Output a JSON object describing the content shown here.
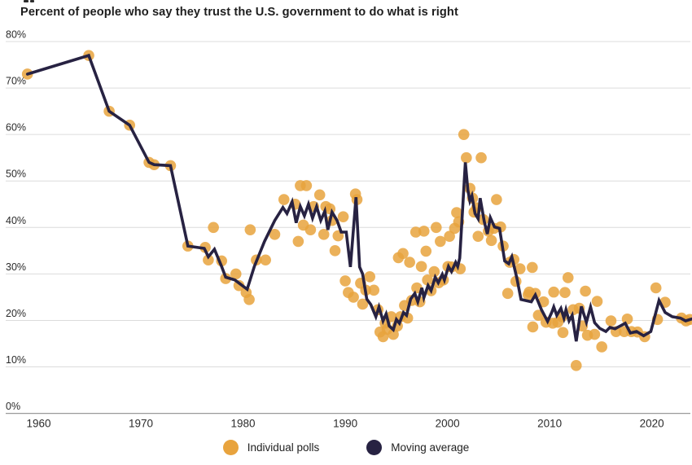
{
  "title": "Percent of people who say they trust the U.S. government to do what is right",
  "legend": [
    {
      "label": "Individual polls",
      "color": "#E8A33D"
    },
    {
      "label": "Moving average",
      "color": "#272242"
    }
  ],
  "colors": {
    "poll_dot": "#E8A33D",
    "moving_average_line": "#272242",
    "gridline": "#DCDCDC",
    "zero_axis": "#9A9A9A",
    "tick_text": "#2b2b2b"
  },
  "chart_data": {
    "type": "scatter",
    "title": "Percent of people who say they trust the U.S. government to do what is right",
    "xlabel": "",
    "ylabel": "",
    "grid": true,
    "legend_position": "bottom",
    "x_axis": {
      "range": [
        1957.5,
        2024.3
      ],
      "ticks": [
        {
          "value": 1960,
          "label": "1960"
        },
        {
          "value": 1970,
          "label": "1970"
        },
        {
          "value": 1980,
          "label": "1980"
        },
        {
          "value": 1990,
          "label": "1990"
        },
        {
          "value": 2000,
          "label": "2000"
        },
        {
          "value": 2010,
          "label": "2010"
        },
        {
          "value": 2020,
          "label": "2020"
        }
      ]
    },
    "y_axis": {
      "range": [
        0,
        80
      ],
      "unit": "%",
      "ticks": [
        {
          "value": 0,
          "label": "0%"
        },
        {
          "value": 10,
          "label": "10%"
        },
        {
          "value": 20,
          "label": "20%"
        },
        {
          "value": 30,
          "label": "30%"
        },
        {
          "value": 40,
          "label": "40%"
        },
        {
          "value": 50,
          "label": "50%"
        },
        {
          "value": 60,
          "label": "60%"
        },
        {
          "value": 70,
          "label": "70%"
        },
        {
          "value": 80,
          "label": "80%"
        }
      ]
    },
    "series": [
      {
        "name": "Individual polls",
        "type": "scatter",
        "color": "#E8A33D",
        "points": [
          [
            1958.9,
            73
          ],
          [
            1964.9,
            77
          ],
          [
            1966.9,
            65
          ],
          [
            1968.9,
            62
          ],
          [
            1970.8,
            54
          ],
          [
            1971.3,
            53.5
          ],
          [
            1972.9,
            53.3
          ],
          [
            1974.6,
            36
          ],
          [
            1976.3,
            35.7
          ],
          [
            1976.6,
            33
          ],
          [
            1977.1,
            40
          ],
          [
            1977.9,
            32.8
          ],
          [
            1978.3,
            29
          ],
          [
            1979.3,
            30
          ],
          [
            1979.6,
            27.5
          ],
          [
            1980.3,
            26
          ],
          [
            1980.6,
            24.5
          ],
          [
            1980.7,
            39.5
          ],
          [
            1981.3,
            33
          ],
          [
            1982.2,
            33
          ],
          [
            1983.1,
            38.5
          ],
          [
            1984,
            46
          ],
          [
            1985.1,
            45
          ],
          [
            1985.4,
            37
          ],
          [
            1985.6,
            49
          ],
          [
            1985.9,
            40.5
          ],
          [
            1986.2,
            49
          ],
          [
            1986.6,
            39.5
          ],
          [
            1986.9,
            44.5
          ],
          [
            1987.5,
            47
          ],
          [
            1987.9,
            38.5
          ],
          [
            1988.1,
            44.5
          ],
          [
            1988.5,
            44
          ],
          [
            1988.7,
            41.5
          ],
          [
            1989,
            35
          ],
          [
            1989.3,
            38.2
          ],
          [
            1989.8,
            42.3
          ],
          [
            1990,
            28.5
          ],
          [
            1990.3,
            26
          ],
          [
            1990.8,
            25
          ],
          [
            1991,
            47.2
          ],
          [
            1991.15,
            46
          ],
          [
            1991.5,
            28
          ],
          [
            1991.7,
            23.5
          ],
          [
            1992,
            26.5
          ],
          [
            1992.4,
            29.4
          ],
          [
            1992.8,
            26.5
          ],
          [
            1993.2,
            22.3
          ],
          [
            1993.4,
            17.5
          ],
          [
            1993.7,
            16.5
          ],
          [
            1993.9,
            19.4
          ],
          [
            1994.1,
            18.1
          ],
          [
            1994.5,
            20.8
          ],
          [
            1994.7,
            17
          ],
          [
            1995.1,
            18.8
          ],
          [
            1995.2,
            33.5
          ],
          [
            1995.4,
            20.8
          ],
          [
            1995.65,
            34.4
          ],
          [
            1995.8,
            23.2
          ],
          [
            1996.1,
            20.5
          ],
          [
            1996.3,
            32.5
          ],
          [
            1996.5,
            24.3
          ],
          [
            1996.9,
            39
          ],
          [
            1997,
            27
          ],
          [
            1997.3,
            24
          ],
          [
            1997.45,
            31.6
          ],
          [
            1997.7,
            39.2
          ],
          [
            1997.9,
            34.9
          ],
          [
            1998.05,
            28.7
          ],
          [
            1998.4,
            26.4
          ],
          [
            1998.7,
            30.5
          ],
          [
            1998.9,
            40
          ],
          [
            1999.15,
            28.1
          ],
          [
            1999.3,
            37
          ],
          [
            1999.6,
            28.7
          ],
          [
            2000.05,
            31.6
          ],
          [
            2000.2,
            38.1
          ],
          [
            2000.4,
            31.5
          ],
          [
            2000.7,
            39.8
          ],
          [
            2000.9,
            43.2
          ],
          [
            2001.1,
            41.2
          ],
          [
            2001.25,
            31.1
          ],
          [
            2001.6,
            60
          ],
          [
            2001.85,
            55
          ],
          [
            2002.2,
            48.4
          ],
          [
            2002.45,
            46.3
          ],
          [
            2002.6,
            43.3
          ],
          [
            2002.85,
            44.2
          ],
          [
            2003,
            38.1
          ],
          [
            2003.3,
            55
          ],
          [
            2003.5,
            41.7
          ],
          [
            2004,
            39.2
          ],
          [
            2004.3,
            37.2
          ],
          [
            2004.55,
            39.8
          ],
          [
            2004.8,
            46
          ],
          [
            2005.2,
            40.1
          ],
          [
            2005.45,
            36
          ],
          [
            2005.9,
            25.8
          ],
          [
            2006.1,
            32.5
          ],
          [
            2006.5,
            33.1
          ],
          [
            2006.7,
            28.4
          ],
          [
            2007.1,
            31.1
          ],
          [
            2007.9,
            25.5
          ],
          [
            2008,
            26.1
          ],
          [
            2008.3,
            31.4
          ],
          [
            2008.35,
            18.6
          ],
          [
            2008.6,
            25.8
          ],
          [
            2008.9,
            21.1
          ],
          [
            2009.4,
            24
          ],
          [
            2009.65,
            19.6
          ],
          [
            2010.3,
            19.4
          ],
          [
            2010.4,
            26.1
          ],
          [
            2010.8,
            19.6
          ],
          [
            2011.2,
            20.8
          ],
          [
            2011.3,
            17.4
          ],
          [
            2011.5,
            26
          ],
          [
            2011.8,
            29.2
          ],
          [
            2012.3,
            22.3
          ],
          [
            2012.6,
            10.3
          ],
          [
            2012.9,
            22.6
          ],
          [
            2013.2,
            18.8
          ],
          [
            2013.5,
            26.3
          ],
          [
            2013.7,
            16.8
          ],
          [
            2014.4,
            17
          ],
          [
            2014.65,
            24.1
          ],
          [
            2015.1,
            14.3
          ],
          [
            2016,
            19.9
          ],
          [
            2016.5,
            17.6
          ],
          [
            2017.3,
            17.6
          ],
          [
            2017.6,
            20.3
          ],
          [
            2018,
            17.6
          ],
          [
            2018.6,
            17.5
          ],
          [
            2019.3,
            16.5
          ],
          [
            2020.4,
            27
          ],
          [
            2020.55,
            20.2
          ],
          [
            2021.3,
            23.9
          ],
          [
            2022.9,
            20.5
          ],
          [
            2023.35,
            19.9
          ],
          [
            2023.7,
            20.2
          ]
        ]
      },
      {
        "name": "Moving average",
        "type": "line",
        "color": "#272242",
        "points": [
          [
            1958.9,
            73
          ],
          [
            1964.9,
            77
          ],
          [
            1966.9,
            65
          ],
          [
            1968.9,
            62
          ],
          [
            1970.8,
            54
          ],
          [
            1971.3,
            53.5
          ],
          [
            1972.9,
            53.3
          ],
          [
            1974.6,
            36
          ],
          [
            1976.2,
            35.5
          ],
          [
            1976.6,
            33.7
          ],
          [
            1977.2,
            35.3
          ],
          [
            1977.9,
            31.6
          ],
          [
            1978.3,
            29.3
          ],
          [
            1979.2,
            28.7
          ],
          [
            1980.4,
            26.7
          ],
          [
            1981.1,
            31.6
          ],
          [
            1982.1,
            37
          ],
          [
            1983.1,
            41.5
          ],
          [
            1983.9,
            44.3
          ],
          [
            1984.3,
            43
          ],
          [
            1984.8,
            45.5
          ],
          [
            1985.2,
            41
          ],
          [
            1985.6,
            44.5
          ],
          [
            1986,
            42.5
          ],
          [
            1986.4,
            45
          ],
          [
            1986.8,
            42
          ],
          [
            1987.2,
            44.5
          ],
          [
            1987.6,
            41.5
          ],
          [
            1988,
            43.5
          ],
          [
            1988.3,
            39.5
          ],
          [
            1988.7,
            43.3
          ],
          [
            1989.2,
            41.5
          ],
          [
            1989.6,
            39
          ],
          [
            1990.1,
            39
          ],
          [
            1990.5,
            31.5
          ],
          [
            1991.05,
            46.5
          ],
          [
            1991.4,
            31.5
          ],
          [
            1991.7,
            30
          ],
          [
            1992.1,
            24.6
          ],
          [
            1992.5,
            23.4
          ],
          [
            1993,
            20.8
          ],
          [
            1993.3,
            22.9
          ],
          [
            1993.7,
            19.9
          ],
          [
            1994,
            21.4
          ],
          [
            1994.3,
            18.8
          ],
          [
            1994.7,
            18
          ],
          [
            1995,
            20.2
          ],
          [
            1995.3,
            19.4
          ],
          [
            1995.7,
            21.7
          ],
          [
            1996,
            21.1
          ],
          [
            1996.4,
            24.6
          ],
          [
            1996.8,
            25.8
          ],
          [
            1997.1,
            24
          ],
          [
            1997.5,
            27
          ],
          [
            1997.7,
            24.9
          ],
          [
            1998.1,
            27.5
          ],
          [
            1998.4,
            26.4
          ],
          [
            1998.8,
            29.3
          ],
          [
            1999.1,
            28.1
          ],
          [
            1999.5,
            29.9
          ],
          [
            1999.7,
            28.7
          ],
          [
            2000.1,
            31.6
          ],
          [
            2000.4,
            30.5
          ],
          [
            2000.8,
            32.5
          ],
          [
            2001,
            31.6
          ],
          [
            2001.2,
            33.4
          ],
          [
            2001.75,
            54
          ],
          [
            2002,
            48
          ],
          [
            2002.2,
            45.7
          ],
          [
            2002.4,
            46.8
          ],
          [
            2002.7,
            43
          ],
          [
            2003,
            41.9
          ],
          [
            2003.2,
            46.3
          ],
          [
            2003.6,
            41.3
          ],
          [
            2003.9,
            38.6
          ],
          [
            2004.2,
            42.1
          ],
          [
            2004.6,
            40.1
          ],
          [
            2005.1,
            39.8
          ],
          [
            2005.6,
            32.8
          ],
          [
            2006,
            32.2
          ],
          [
            2006.3,
            33.7
          ],
          [
            2006.8,
            29
          ],
          [
            2007.2,
            24.5
          ],
          [
            2008.2,
            24
          ],
          [
            2008.6,
            25.5
          ],
          [
            2009.2,
            22.3
          ],
          [
            2009.8,
            19.8
          ],
          [
            2010.2,
            21.7
          ],
          [
            2010.4,
            22.9
          ],
          [
            2010.7,
            21.1
          ],
          [
            2011.1,
            22.6
          ],
          [
            2011.4,
            20.5
          ],
          [
            2011.6,
            22.3
          ],
          [
            2011.9,
            19.9
          ],
          [
            2012.2,
            21.1
          ],
          [
            2012.6,
            15.5
          ],
          [
            2013.1,
            23
          ],
          [
            2013.6,
            19.6
          ],
          [
            2014,
            22.9
          ],
          [
            2014.4,
            19.5
          ],
          [
            2014.9,
            18.3
          ],
          [
            2015.5,
            17.6
          ],
          [
            2015.9,
            18.5
          ],
          [
            2016.4,
            18.2
          ],
          [
            2017.4,
            19.4
          ],
          [
            2017.9,
            17.3
          ],
          [
            2018.5,
            17.6
          ],
          [
            2019.2,
            16.7
          ],
          [
            2019.9,
            17.6
          ],
          [
            2020.7,
            24.3
          ],
          [
            2021.3,
            21.7
          ],
          [
            2022,
            20.8
          ],
          [
            2022.8,
            20.5
          ],
          [
            2023.3,
            19.9
          ],
          [
            2023.9,
            20.3
          ]
        ]
      }
    ]
  }
}
